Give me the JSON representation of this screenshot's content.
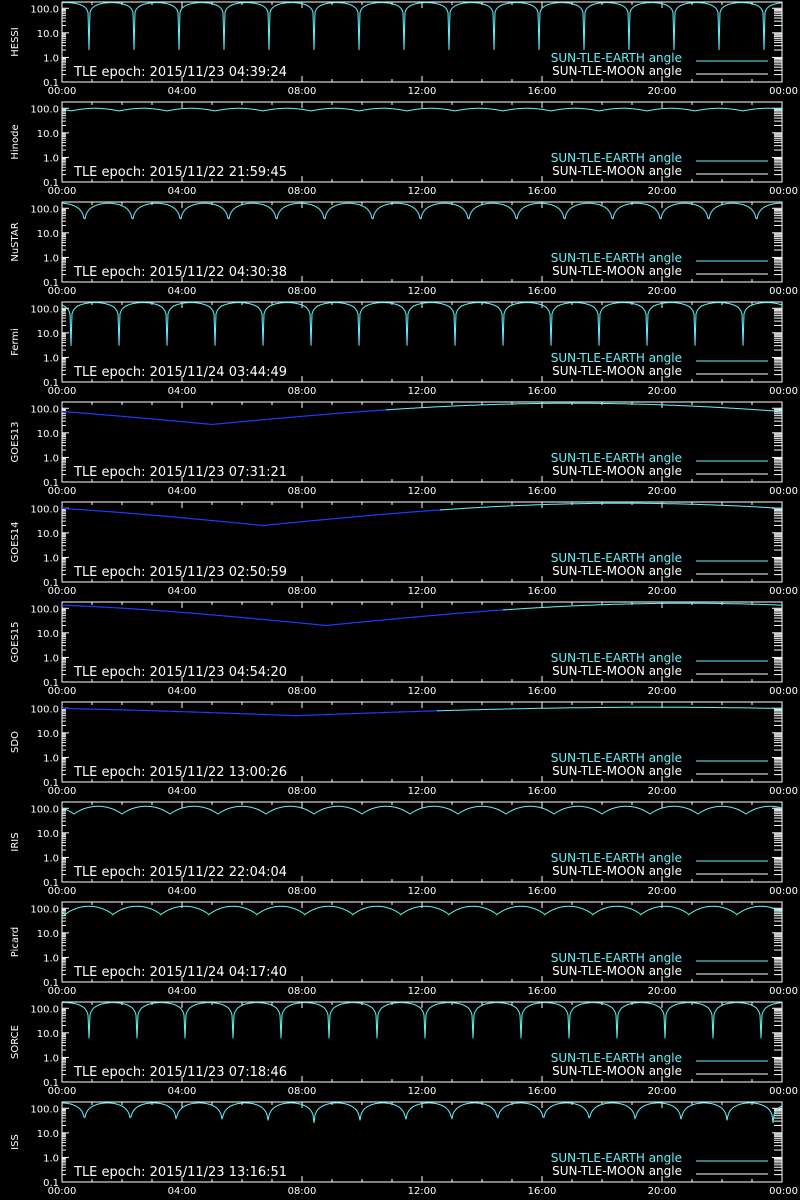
{
  "colors": {
    "background": "#000000",
    "axes": "#ffffff",
    "earth_curve": "#5ff5ff",
    "moon_curve": "#ffffff",
    "shadow_curve": "#1c3cff"
  },
  "chart_data": [
    {
      "type": "line",
      "ylabel": "HESSI",
      "epoch": "TLE epoch: 2015/11/23 04:39:24",
      "legend": [
        "SUN-TLE-EARTH angle",
        "SUN-TLE-MOON angle"
      ],
      "legend_placement": "bottom-right",
      "xticks": [
        "00:00",
        "04:00",
        "08:00",
        "12:00",
        "16:00",
        "20:00",
        "00:00"
      ],
      "xlim_hours": [
        0,
        24
      ],
      "ylim": [
        0.1,
        180
      ],
      "yscale": "log",
      "yticks": [
        "100.0",
        "10.0",
        "1.0",
        "0.1"
      ],
      "orbit": {
        "period_hours": 1.5,
        "phase_hours": 0.9,
        "max_deg": 170,
        "min_deg": 2,
        "shape_power": 0.35
      }
    },
    {
      "type": "line",
      "ylabel": "Hinode",
      "epoch": "TLE epoch: 2015/11/22 21:59:45",
      "legend": [
        "SUN-TLE-EARTH angle",
        "SUN-TLE-MOON angle"
      ],
      "legend_placement": "bottom-right",
      "xticks": [
        "00:00",
        "04:00",
        "08:00",
        "12:00",
        "16:00",
        "20:00",
        "00:00"
      ],
      "xlim_hours": [
        0,
        24
      ],
      "ylim": [
        0.1,
        180
      ],
      "yscale": "log",
      "yticks": [
        "100.0",
        "10.0",
        "1.0",
        "0.1"
      ],
      "orbit": {
        "period_hours": 1.6,
        "phase_hours": 0.3,
        "max_deg": 100,
        "min_deg": 78,
        "shape_power": 1.0
      }
    },
    {
      "type": "line",
      "ylabel": "NuSTAR",
      "epoch": "TLE epoch: 2015/11/22 04:30:38",
      "legend": [
        "SUN-TLE-EARTH angle",
        "SUN-TLE-MOON angle"
      ],
      "legend_placement": "bottom-right",
      "xticks": [
        "00:00",
        "04:00",
        "08:00",
        "12:00",
        "16:00",
        "20:00",
        "00:00"
      ],
      "xlim_hours": [
        0,
        24
      ],
      "ylim": [
        0.1,
        180
      ],
      "yscale": "log",
      "yticks": [
        "100.0",
        "10.0",
        "1.0",
        "0.1"
      ],
      "orbit": {
        "period_hours": 1.6,
        "phase_hours": 0.75,
        "max_deg": 160,
        "min_deg": 20,
        "shape_power": 0.6
      }
    },
    {
      "type": "line",
      "ylabel": "Fermi",
      "epoch": "TLE epoch: 2015/11/24 03:44:49",
      "legend": [
        "SUN-TLE-EARTH angle",
        "SUN-TLE-MOON angle"
      ],
      "legend_placement": "bottom-right",
      "xticks": [
        "00:00",
        "04:00",
        "08:00",
        "12:00",
        "16:00",
        "20:00",
        "00:00"
      ],
      "xlim_hours": [
        0,
        24
      ],
      "ylim": [
        0.1,
        180
      ],
      "yscale": "log",
      "yticks": [
        "100.0",
        "10.0",
        "1.0",
        "0.1"
      ],
      "orbit": {
        "period_hours": 1.6,
        "phase_hours": 0.3,
        "max_deg": 170,
        "min_deg": 3,
        "shape_power": 0.4
      }
    },
    {
      "type": "line",
      "ylabel": "GOES13",
      "epoch": "TLE epoch: 2015/11/23 07:31:21",
      "legend": [
        "SUN-TLE-EARTH angle",
        "SUN-TLE-MOON angle"
      ],
      "legend_placement": "bottom-right",
      "xticks": [
        "00:00",
        "04:00",
        "08:00",
        "12:00",
        "16:00",
        "20:00",
        "00:00"
      ],
      "xlim_hours": [
        0,
        24
      ],
      "ylim": [
        0.1,
        180
      ],
      "yscale": "log",
      "yticks": [
        "100.0",
        "10.0",
        "1.0",
        "0.1"
      ],
      "geo": {
        "min_hour": 5.0,
        "min_deg": 22,
        "max_deg": 160,
        "shadow_until_hour": 10.9
      }
    },
    {
      "type": "line",
      "ylabel": "GOES14",
      "epoch": "TLE epoch: 2015/11/23 02:50:59",
      "legend": [
        "SUN-TLE-EARTH angle",
        "SUN-TLE-MOON angle"
      ],
      "legend_placement": "bottom-right",
      "xticks": [
        "00:00",
        "04:00",
        "08:00",
        "12:00",
        "16:00",
        "20:00",
        "00:00"
      ],
      "xlim_hours": [
        0,
        24
      ],
      "ylim": [
        0.1,
        180
      ],
      "yscale": "log",
      "yticks": [
        "100.0",
        "10.0",
        "1.0",
        "0.1"
      ],
      "geo": {
        "min_hour": 6.7,
        "min_deg": 20,
        "max_deg": 160,
        "shadow_until_hour": 12.7
      }
    },
    {
      "type": "line",
      "ylabel": "GOES15",
      "epoch": "TLE epoch: 2015/11/23 04:54:20",
      "legend": [
        "SUN-TLE-EARTH angle",
        "SUN-TLE-MOON angle"
      ],
      "legend_placement": "bottom-right",
      "xticks": [
        "00:00",
        "04:00",
        "08:00",
        "12:00",
        "16:00",
        "20:00",
        "00:00"
      ],
      "xlim_hours": [
        0,
        24
      ],
      "ylim": [
        0.1,
        180
      ],
      "yscale": "log",
      "yticks": [
        "100.0",
        "10.0",
        "1.0",
        "0.1"
      ],
      "geo": {
        "min_hour": 8.8,
        "min_deg": 20,
        "max_deg": 160,
        "shadow_until_hour": 14.8
      }
    },
    {
      "type": "line",
      "ylabel": "SDO",
      "epoch": "TLE epoch: 2015/11/22 13:00:26",
      "legend": [
        "SUN-TLE-EARTH angle",
        "SUN-TLE-MOON angle"
      ],
      "legend_placement": "bottom-right",
      "xticks": [
        "00:00",
        "04:00",
        "08:00",
        "12:00",
        "16:00",
        "20:00",
        "00:00"
      ],
      "xlim_hours": [
        0,
        24
      ],
      "ylim": [
        0.1,
        180
      ],
      "yscale": "log",
      "yticks": [
        "100.0",
        "10.0",
        "1.0",
        "0.1"
      ],
      "geo": {
        "min_hour": 7.8,
        "min_deg": 50,
        "max_deg": 110,
        "shadow_until_hour": 12.6
      }
    },
    {
      "type": "line",
      "ylabel": "IRIS",
      "epoch": "TLE epoch: 2015/11/22 22:04:04",
      "legend": [
        "SUN-TLE-EARTH angle",
        "SUN-TLE-MOON angle"
      ],
      "legend_placement": "bottom-right",
      "xticks": [
        "00:00",
        "04:00",
        "08:00",
        "12:00",
        "16:00",
        "20:00",
        "00:00"
      ],
      "xlim_hours": [
        0,
        24
      ],
      "ylim": [
        0.1,
        180
      ],
      "yscale": "log",
      "yticks": [
        "100.0",
        "10.0",
        "1.0",
        "0.1"
      ],
      "orbit": {
        "period_hours": 1.6,
        "phase_hours": 0.4,
        "max_deg": 120,
        "min_deg": 58,
        "shape_power": 1.0
      }
    },
    {
      "type": "line",
      "ylabel": "Picard",
      "epoch": "TLE epoch: 2015/11/24 04:17:40",
      "legend": [
        "SUN-TLE-EARTH angle",
        "SUN-TLE-MOON angle"
      ],
      "legend_placement": "bottom-right",
      "xticks": [
        "00:00",
        "04:00",
        "08:00",
        "12:00",
        "16:00",
        "20:00",
        "00:00"
      ],
      "xlim_hours": [
        0,
        24
      ],
      "ylim": [
        0.1,
        180
      ],
      "yscale": "log",
      "yticks": [
        "100.0",
        "10.0",
        "1.0",
        "0.1"
      ],
      "orbit": {
        "period_hours": 1.6,
        "phase_hours": 0.1,
        "max_deg": 120,
        "min_deg": 55,
        "shape_power": 1.0
      }
    },
    {
      "type": "line",
      "ylabel": "SORCE",
      "epoch": "TLE epoch: 2015/11/23 07:18:46",
      "legend": [
        "SUN-TLE-EARTH angle",
        "SUN-TLE-MOON angle"
      ],
      "legend_placement": "bottom-right",
      "xticks": [
        "00:00",
        "04:00",
        "08:00",
        "12:00",
        "16:00",
        "20:00",
        "00:00"
      ],
      "xlim_hours": [
        0,
        24
      ],
      "ylim": [
        0.1,
        180
      ],
      "yscale": "log",
      "yticks": [
        "100.0",
        "10.0",
        "1.0",
        "0.1"
      ],
      "orbit": {
        "period_hours": 1.6,
        "phase_hours": 0.9,
        "max_deg": 170,
        "min_deg": 6,
        "shape_power": 0.45
      }
    },
    {
      "type": "line",
      "ylabel": "ISS",
      "epoch": "TLE epoch: 2015/11/23 13:16:51",
      "legend": [
        "SUN-TLE-EARTH angle",
        "SUN-TLE-MOON angle"
      ],
      "legend_placement": "bottom-right",
      "xticks": [
        "00:00",
        "04:00",
        "08:00",
        "12:00",
        "16:00",
        "20:00",
        "00:00"
      ],
      "xlim_hours": [
        0,
        24
      ],
      "ylim": [
        0.1,
        180
      ],
      "yscale": "log",
      "yticks": [
        "100.0",
        "10.0",
        "1.0",
        "0.1"
      ],
      "orbit": {
        "period_hours": 1.53,
        "phase_hours": 0.75,
        "max_deg": 165,
        "min_deg": 25,
        "shape_power": 0.6
      }
    }
  ]
}
